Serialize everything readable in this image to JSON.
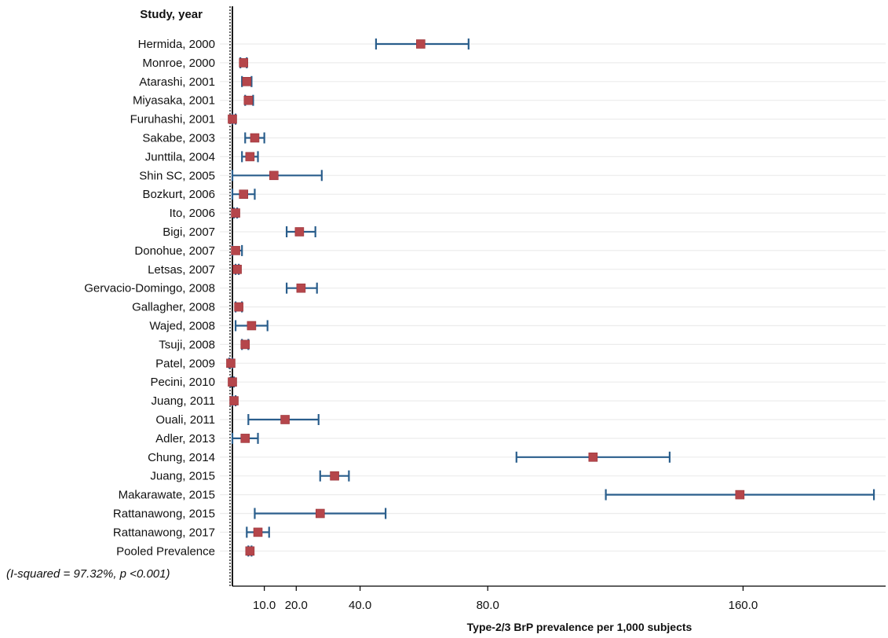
{
  "chart_data": {
    "type": "forest",
    "column_heading": "Study, year",
    "xlabel": "Type-2/3 BrP prevalence per 1,000 subjects",
    "x_ticks": [
      {
        "value": 10,
        "label": "10.0"
      },
      {
        "value": 20,
        "label": "20.0"
      },
      {
        "value": 40,
        "label": "40.0"
      },
      {
        "value": 80,
        "label": "80.0"
      },
      {
        "value": 160,
        "label": "160.0"
      }
    ],
    "xlim": [
      0,
      200
    ],
    "reference_line": 0,
    "heterogeneity_note": "(I-squared = 97.32%, p <0.001)",
    "studies": [
      {
        "label": "Hermida, 2000",
        "estimate": 59.0,
        "lower": 45.0,
        "upper": 74.0
      },
      {
        "label": "Monroe, 2000",
        "estimate": 3.5,
        "lower": 2.5,
        "upper": 4.5
      },
      {
        "label": "Atarashi, 2001",
        "estimate": 4.5,
        "lower": 3.0,
        "upper": 6.0
      },
      {
        "label": "Miyasaka, 2001",
        "estimate": 5.0,
        "lower": 4.0,
        "upper": 6.5
      },
      {
        "label": "Furuhashi, 2001",
        "estimate": 0.0,
        "lower": 0.0,
        "upper": 1.0
      },
      {
        "label": "Sakabe, 2003",
        "estimate": 7.0,
        "lower": 4.0,
        "upper": 10.0
      },
      {
        "label": "Junttila, 2004",
        "estimate": 5.5,
        "lower": 3.0,
        "upper": 8.0
      },
      {
        "label": "Shin SC, 2005",
        "estimate": 13.0,
        "lower": 0.0,
        "upper": 28.0
      },
      {
        "label": "Bozkurt, 2006",
        "estimate": 3.5,
        "lower": 0.0,
        "upper": 7.0
      },
      {
        "label": "Ito, 2006",
        "estimate": 1.0,
        "lower": 0.5,
        "upper": 1.5
      },
      {
        "label": "Bigi, 2007",
        "estimate": 21.0,
        "lower": 17.0,
        "upper": 26.0
      },
      {
        "label": "Donohue, 2007",
        "estimate": 1.0,
        "lower": 0.0,
        "upper": 3.0
      },
      {
        "label": "Letsas, 2007",
        "estimate": 1.5,
        "lower": 1.0,
        "upper": 2.0
      },
      {
        "label": "Gervacio-Domingo, 2008",
        "estimate": 21.5,
        "lower": 17.0,
        "upper": 26.5
      },
      {
        "label": "Gallagher, 2008",
        "estimate": 2.0,
        "lower": 1.0,
        "upper": 3.0
      },
      {
        "label": "Wajed, 2008",
        "estimate": 6.0,
        "lower": 1.0,
        "upper": 11.0
      },
      {
        "label": "Tsuji, 2008",
        "estimate": 4.0,
        "lower": 3.0,
        "upper": 5.0
      },
      {
        "label": "Patel, 2009",
        "estimate": -0.5,
        "lower": -1.0,
        "upper": 0.0
      },
      {
        "label": "Pecini, 2010",
        "estimate": 0.0,
        "lower": -0.5,
        "upper": 0.5
      },
      {
        "label": "Juang, 2011",
        "estimate": 0.5,
        "lower": 0.0,
        "upper": 1.0
      },
      {
        "label": "Ouali, 2011",
        "estimate": 16.5,
        "lower": 5.0,
        "upper": 27.0
      },
      {
        "label": "Adler, 2013",
        "estimate": 4.0,
        "lower": 0.0,
        "upper": 8.0
      },
      {
        "label": "Chung, 2014",
        "estimate": 113.0,
        "lower": 89.0,
        "upper": 137.0
      },
      {
        "label": "Juang, 2015",
        "estimate": 32.0,
        "lower": 27.5,
        "upper": 36.5
      },
      {
        "label": "Makarawate, 2015",
        "estimate": 159.0,
        "lower": 117.0,
        "upper": 201.0
      },
      {
        "label": "Rattanawong, 2015",
        "estimate": 27.5,
        "lower": 7.0,
        "upper": 48.0
      },
      {
        "label": "Rattanawong, 2017",
        "estimate": 8.0,
        "lower": 4.5,
        "upper": 11.5
      },
      {
        "label": "Pooled Prevalence",
        "estimate": 5.5,
        "lower": 5.0,
        "upper": 6.0
      }
    ],
    "colors": {
      "point": "#b5464b",
      "ci": "#2a5e8c",
      "row_line": "#ececec"
    }
  }
}
